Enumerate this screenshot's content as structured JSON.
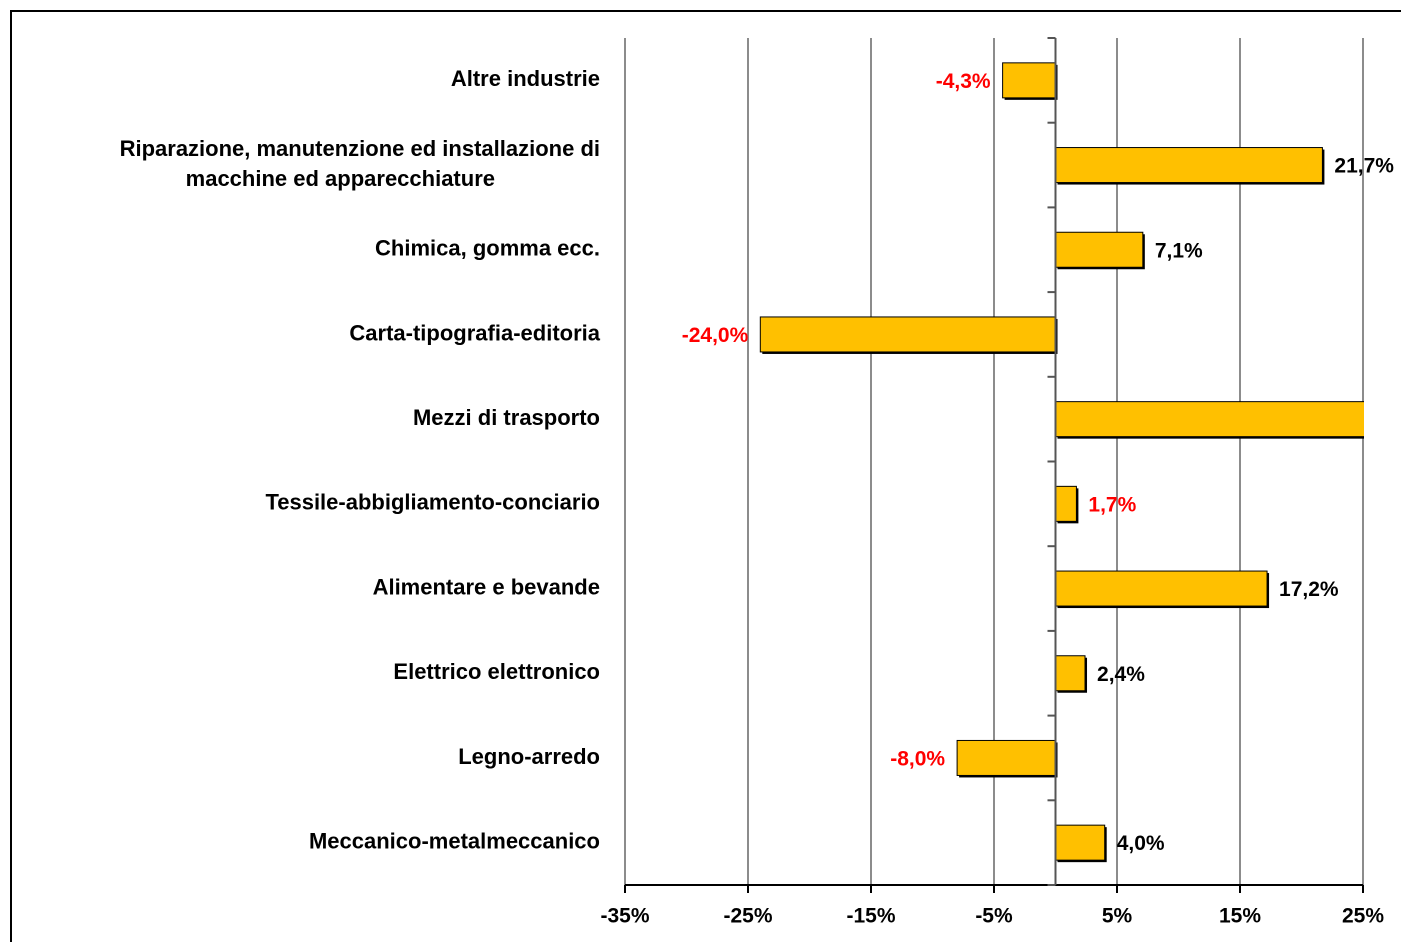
{
  "chart_data": {
    "type": "hbar",
    "categories": [
      "Altre industrie",
      "Riparazione, manutenzione ed installazione di\nmacchine ed apparecchiature",
      "Chimica, gomma ecc.",
      "Carta-tipografia-editoria",
      "Mezzi di trasporto",
      "Tessile-abbigliamento-conciario",
      "Alimentare e bevande",
      "Elettrico elettronico",
      "Legno-arredo",
      "Meccanico-metalmeccanico"
    ],
    "values": [
      -4.3,
      21.7,
      7.1,
      -24.0,
      28,
      1.7,
      17.2,
      2.4,
      -8.0,
      4.0
    ],
    "value_labels": [
      "-4,3%",
      "21,7%",
      "7,1%",
      "-24,0%",
      null,
      "1,7%",
      "17,2%",
      "2,4%",
      "-8,0%",
      "4,0%"
    ],
    "value_label_colors": [
      "#ff0000",
      "#000000",
      "#000000",
      "#ff0000",
      null,
      "#ff0000",
      "#000000",
      "#000000",
      "#ff0000",
      "#000000"
    ],
    "color": "#ffc000",
    "xlim": [
      -35,
      25
    ],
    "xticks": [
      {
        "value": -35,
        "label": "-35%"
      },
      {
        "value": -25,
        "label": "-25%"
      },
      {
        "value": -15,
        "label": "-15%"
      },
      {
        "value": -5,
        "label": "-5%"
      },
      {
        "value": 5,
        "label": "5%"
      },
      {
        "value": 15,
        "label": "15%"
      },
      {
        "value": 25,
        "label": "25%"
      }
    ],
    "grid": true
  }
}
